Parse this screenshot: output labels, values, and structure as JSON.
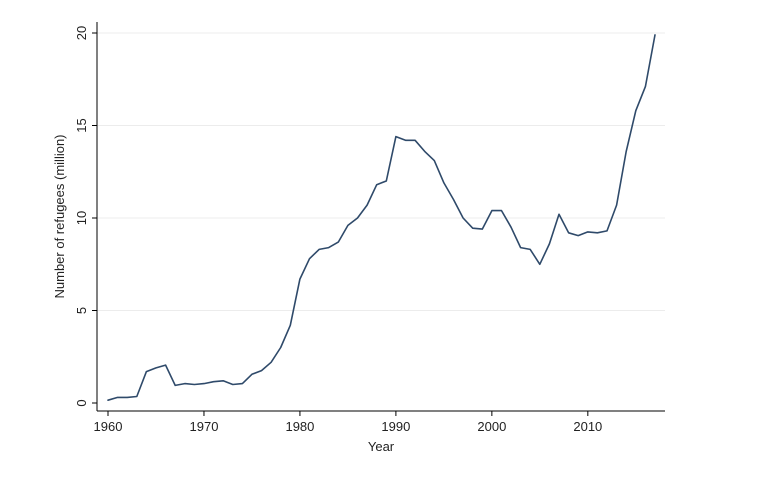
{
  "chart_data": {
    "type": "line",
    "title": "",
    "xlabel": "Year",
    "ylabel": "Number of refugees (million)",
    "xlim": [
      1960,
      2017
    ],
    "ylim": [
      0,
      20
    ],
    "x_ticks": [
      1960,
      1970,
      1980,
      1990,
      2000,
      2010
    ],
    "y_ticks": [
      0,
      5,
      10,
      15,
      20
    ],
    "grid": "horizontal",
    "line_color": "#2f4a6a",
    "series": [
      {
        "name": "",
        "x": [
          1960,
          1961,
          1962,
          1963,
          1964,
          1965,
          1966,
          1967,
          1968,
          1969,
          1970,
          1971,
          1972,
          1973,
          1974,
          1975,
          1976,
          1977,
          1978,
          1979,
          1980,
          1981,
          1982,
          1983,
          1984,
          1985,
          1986,
          1987,
          1988,
          1989,
          1990,
          1991,
          1992,
          1993,
          1994,
          1995,
          1996,
          1997,
          1998,
          1999,
          2000,
          2001,
          2002,
          2003,
          2004,
          2005,
          2006,
          2007,
          2008,
          2009,
          2010,
          2011,
          2012,
          2013,
          2014,
          2015,
          2016,
          2017
        ],
        "y": [
          0.15,
          0.3,
          0.3,
          0.35,
          1.7,
          1.9,
          2.05,
          0.95,
          1.05,
          1.0,
          1.05,
          1.15,
          1.2,
          1.0,
          1.05,
          1.55,
          1.75,
          2.2,
          3.0,
          4.2,
          6.7,
          7.8,
          8.3,
          8.4,
          8.7,
          9.6,
          10.0,
          10.7,
          11.8,
          12.0,
          14.4,
          14.2,
          14.2,
          13.6,
          13.1,
          11.9,
          11.0,
          10.0,
          9.45,
          9.4,
          10.4,
          10.4,
          9.5,
          8.4,
          8.3,
          7.5,
          8.6,
          10.2,
          9.2,
          9.05,
          9.25,
          9.2,
          9.3,
          10.7,
          13.6,
          15.8,
          17.1,
          19.9
        ]
      }
    ]
  }
}
